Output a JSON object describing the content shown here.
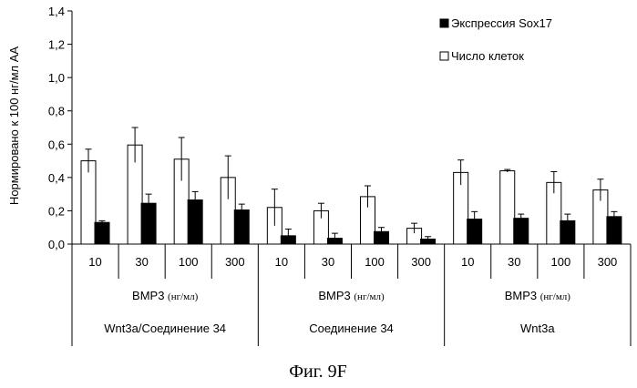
{
  "chart_data": {
    "type": "bar",
    "ylabel": "Нормировано к 100 нг/мл АА",
    "ylim": [
      0,
      1.4
    ],
    "yticks": [
      "0,0",
      "0,2",
      "0,4",
      "0,6",
      "0,8",
      "1,0",
      "1,2",
      "1,4"
    ],
    "categories": [
      "10",
      "30",
      "100",
      "300",
      "10",
      "30",
      "100",
      "300",
      "10",
      "30",
      "100",
      "300"
    ],
    "bmp_label_main": "BMP3",
    "bmp_label_unit": "(нг/мл)",
    "groups": [
      "Wnt3a/Соединение 34",
      "Соединение 34",
      "Wnt3a"
    ],
    "legend_position": "top-right",
    "series": [
      {
        "name": "Число клеток",
        "fill": "#ffffff",
        "values": [
          0.5,
          0.595,
          0.51,
          0.4,
          0.22,
          0.2,
          0.285,
          0.095,
          0.43,
          0.44,
          0.37,
          0.325
        ],
        "errors": [
          0.07,
          0.105,
          0.13,
          0.13,
          0.11,
          0.045,
          0.065,
          0.03,
          0.075,
          0.008,
          0.065,
          0.065
        ]
      },
      {
        "name": "Экспрессия Sox17",
        "fill": "#000000",
        "values": [
          0.13,
          0.245,
          0.265,
          0.205,
          0.05,
          0.035,
          0.075,
          0.03,
          0.15,
          0.155,
          0.14,
          0.165
        ],
        "errors": [
          0.01,
          0.055,
          0.05,
          0.035,
          0.04,
          0.03,
          0.025,
          0.015,
          0.045,
          0.025,
          0.04,
          0.03
        ]
      }
    ]
  },
  "legend": [
    {
      "symbol": "filled-square",
      "label": "Экспрессия Sox17"
    },
    {
      "symbol": "open-square",
      "label": "Число клеток"
    }
  ],
  "caption": "Фиг. 9F"
}
